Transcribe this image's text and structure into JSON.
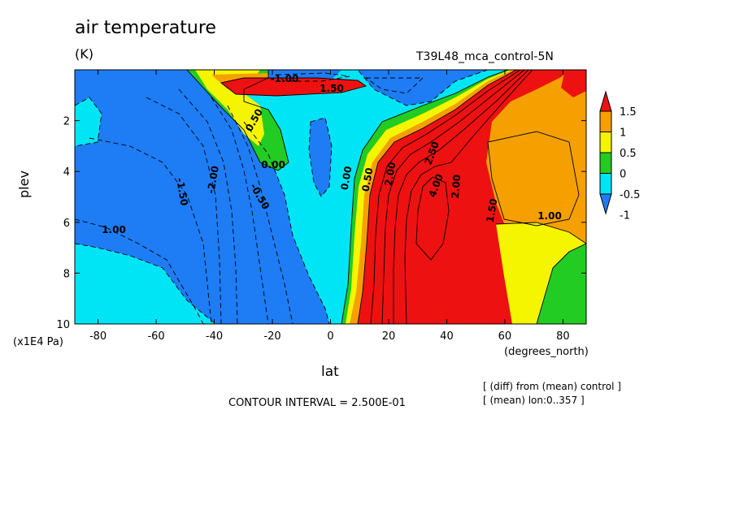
{
  "chart_data": {
    "type": "heatmap",
    "title": "air temperature",
    "units": "(K)",
    "run_label": "T39L48_mca_control-5N",
    "xlabel": "lat",
    "x_units": "(degrees_north)",
    "ylabel": "plev",
    "y_units": "(x1E4 Pa)",
    "xlim": [
      -88,
      88
    ],
    "ylim": [
      10,
      0
    ],
    "x_ticks": [
      "-80",
      "-60",
      "-40",
      "-20",
      "0",
      "20",
      "40",
      "60",
      "80"
    ],
    "y_ticks": [
      "2",
      "4",
      "6",
      "8",
      "10"
    ],
    "colorbar": {
      "labels": [
        "1.5",
        "1",
        "0.5",
        "0",
        "-0.5",
        "-1"
      ],
      "colors": [
        "#ee1111",
        "#f5a000",
        "#f5f500",
        "#22cc22",
        "#00e5f5",
        "#1e7cf5"
      ],
      "end_triangles": true
    },
    "contour_labels": [
      "-1.00",
      "1.50",
      "0.50",
      "0.00",
      "-1.50",
      "-2.00",
      "-0.50",
      "1.00",
      "0.00",
      "0.50",
      "2.00",
      "4.00",
      "2.50",
      "2.00",
      "1.50",
      "1.00"
    ],
    "contour_interval_text": "CONTOUR INTERVAL = 2.500E-01",
    "notes": [
      "[ (diff) from (mean) control ]",
      "[ (mean) lon:0..357 ]"
    ],
    "regions": [
      {
        "level": "-1",
        "desc": "southern hemisphere and tropical upper levels, most of 88S-10S"
      },
      {
        "level": "-0.5",
        "desc": "near equator 10S-5N and high-latitude surface 88S-40S"
      },
      {
        "level": "1.5",
        "desc": "subtropics and midlatitudes 15N-55N, peak about 4 near 35N, 4e4 Pa"
      },
      {
        "level": "1",
        "desc": "55N-88N mid levels"
      },
      {
        "level": "0",
        "desc": "near surface around 70N-88N"
      }
    ]
  }
}
